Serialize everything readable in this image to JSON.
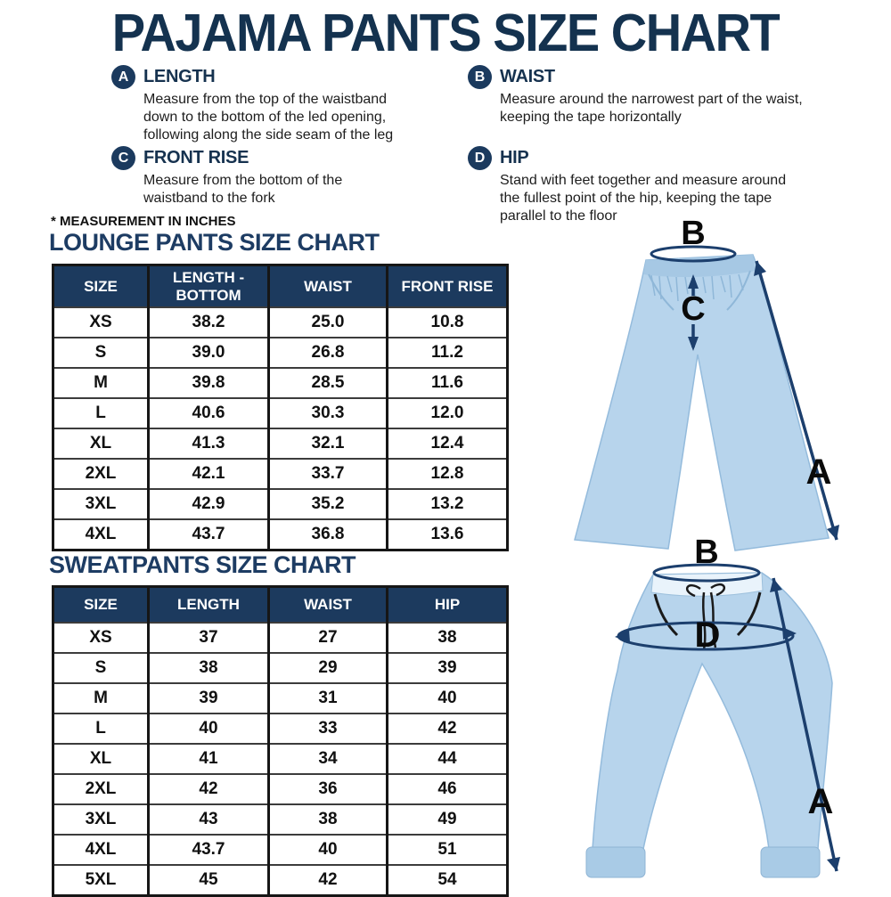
{
  "page": {
    "title": "PAJAMA PANTS SIZE CHART",
    "note": "* MEASUREMENT IN INCHES"
  },
  "definitions": [
    {
      "letter": "A",
      "term": "LENGTH",
      "description": "Measure from the top of the waistband down to the bottom of the led opening, following along the side seam of the leg"
    },
    {
      "letter": "B",
      "term": "WAIST",
      "description": "Measure around the narrowest part of the waist, keeping the tape horizontally"
    },
    {
      "letter": "C",
      "term": "FRONT RISE",
      "description": "Measure from the bottom of the waistband to the fork"
    },
    {
      "letter": "D",
      "term": "HIP",
      "description": "Stand with feet together and measure around the fullest point of the hip, keeping the tape parallel to the floor"
    }
  ],
  "lounge_table": {
    "title": "LOUNGE PANTS SIZE CHART",
    "headers": [
      "SIZE",
      "LENGTH - BOTTOM",
      "WAIST",
      "FRONT RISE"
    ],
    "rows": [
      [
        "XS",
        "38.2",
        "25.0",
        "10.8"
      ],
      [
        "S",
        "39.0",
        "26.8",
        "11.2"
      ],
      [
        "M",
        "39.8",
        "28.5",
        "11.6"
      ],
      [
        "L",
        "40.6",
        "30.3",
        "12.0"
      ],
      [
        "XL",
        "41.3",
        "32.1",
        "12.4"
      ],
      [
        "2XL",
        "42.1",
        "33.7",
        "12.8"
      ],
      [
        "3XL",
        "42.9",
        "35.2",
        "13.2"
      ],
      [
        "4XL",
        "43.7",
        "36.8",
        "13.6"
      ]
    ]
  },
  "sweatpants_table": {
    "title": "SWEATPANTS SIZE CHART",
    "headers": [
      "SIZE",
      "LENGTH",
      "WAIST",
      "HIP"
    ],
    "rows": [
      [
        "XS",
        "37",
        "27",
        "38"
      ],
      [
        "S",
        "38",
        "29",
        "39"
      ],
      [
        "M",
        "39",
        "31",
        "40"
      ],
      [
        "L",
        "40",
        "33",
        "42"
      ],
      [
        "XL",
        "41",
        "34",
        "44"
      ],
      [
        "2XL",
        "42",
        "36",
        "46"
      ],
      [
        "3XL",
        "43",
        "38",
        "49"
      ],
      [
        "4XL",
        "43.7",
        "40",
        "51"
      ],
      [
        "5XL",
        "45",
        "42",
        "54"
      ]
    ]
  },
  "illustrations": {
    "lounge": {
      "label_a": "A",
      "label_b": "B",
      "label_c": "C"
    },
    "sweatpants": {
      "label_a": "A",
      "label_b": "B",
      "label_d": "D"
    }
  },
  "colors": {
    "navy_title": "#14324f",
    "table_header": "#1c3a5e",
    "arrow_navy": "#1c3f6d",
    "pants_blue": "#b7d4ec",
    "label_black": "#0a0a0a"
  }
}
